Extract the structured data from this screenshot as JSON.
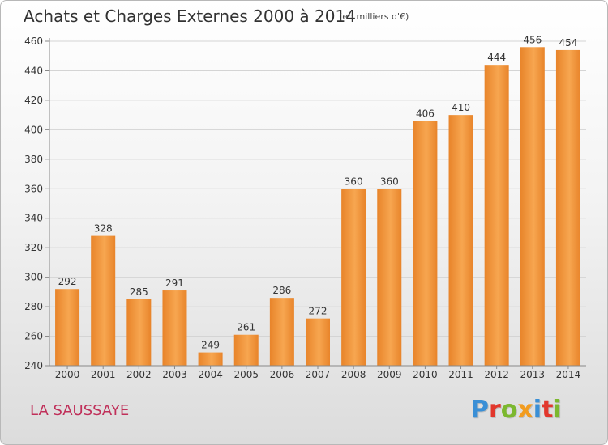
{
  "title": "Achats et Charges Externes 2000 à 2014",
  "unit_note": "(en milliers d'€)",
  "commune": "LA SAUSSAYE",
  "logo": {
    "text": "Proxiti",
    "letter_colors": [
      "#3a8fd6",
      "#e2372c",
      "#7cb82f",
      "#f29c1f",
      "#3a8fd6",
      "#e2372c",
      "#7cb82f"
    ]
  },
  "colors": {
    "bar_light": "#f7a650",
    "bar_dark": "#e8842a",
    "grid": "#d4d4d4",
    "axis_text": "#333333"
  },
  "chart_data": {
    "type": "bar",
    "title": "Achats et Charges Externes 2000 à 2014",
    "categories": [
      "2000",
      "2001",
      "2002",
      "2003",
      "2004",
      "2005",
      "2006",
      "2007",
      "2008",
      "2009",
      "2010",
      "2011",
      "2012",
      "2013",
      "2014"
    ],
    "values": [
      292,
      328,
      285,
      291,
      249,
      261,
      286,
      272,
      360,
      360,
      406,
      410,
      444,
      456,
      454
    ],
    "ylim": [
      240,
      460
    ],
    "yticks": [
      240,
      260,
      280,
      300,
      320,
      340,
      360,
      380,
      400,
      420,
      440,
      460
    ],
    "grid": true,
    "data_labels": true
  }
}
